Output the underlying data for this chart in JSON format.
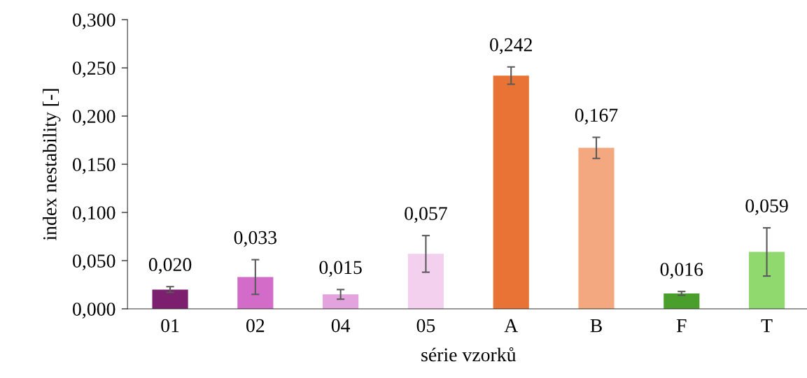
{
  "chart_data": {
    "type": "bar",
    "xlabel": "série vzorků",
    "ylabel": "index nestability [-]",
    "categories": [
      "01",
      "02",
      "04",
      "05",
      "A",
      "B",
      "F",
      "T"
    ],
    "values": [
      0.02,
      0.033,
      0.015,
      0.057,
      0.242,
      0.167,
      0.016,
      0.059
    ],
    "colors": [
      "#7b1f6e",
      "#d36bc9",
      "#e3a3de",
      "#f2d0ee",
      "#e97235",
      "#f3a880",
      "#4a9e2b",
      "#8fd96f"
    ],
    "errors": [
      0.003,
      0.018,
      0.005,
      0.019,
      0.009,
      0.011,
      0.002,
      0.025
    ],
    "value_labels": [
      "0,020",
      "0,033",
      "0,015",
      "0,057",
      "0,242",
      "0,167",
      "0,016",
      "0,059"
    ],
    "ylim": [
      0,
      0.3
    ],
    "yticks": [
      {
        "value": 0,
        "label": "0,000"
      },
      {
        "value": 0.05,
        "label": "0,050"
      },
      {
        "value": 0.1,
        "label": "0,100"
      },
      {
        "value": 0.15,
        "label": "0,150"
      },
      {
        "value": 0.2,
        "label": "0,200"
      },
      {
        "value": 0.25,
        "label": "0,250"
      },
      {
        "value": 0.3,
        "label": "0,300"
      }
    ],
    "grid": false,
    "legend": false
  }
}
